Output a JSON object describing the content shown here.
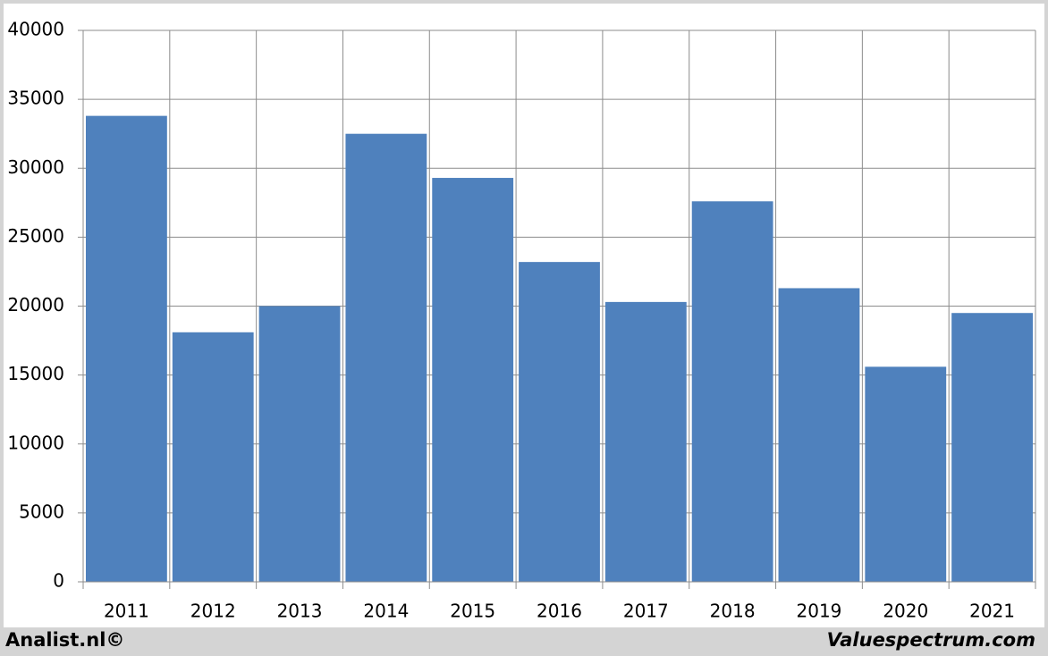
{
  "chart_data": {
    "type": "bar",
    "categories": [
      "2011",
      "2012",
      "2013",
      "2014",
      "2015",
      "2016",
      "2017",
      "2018",
      "2019",
      "2020",
      "2021"
    ],
    "values": [
      33800,
      18100,
      20000,
      32500,
      29300,
      23200,
      20300,
      27600,
      21300,
      15600,
      19500
    ],
    "color": "#4f81bd",
    "ylim": [
      0,
      40000
    ],
    "yticks": [
      0,
      5000,
      10000,
      15000,
      20000,
      25000,
      30000,
      35000,
      40000
    ],
    "grid": true
  },
  "footer": {
    "left": "Analist.nl©",
    "right": "Valuespectrum.com"
  }
}
